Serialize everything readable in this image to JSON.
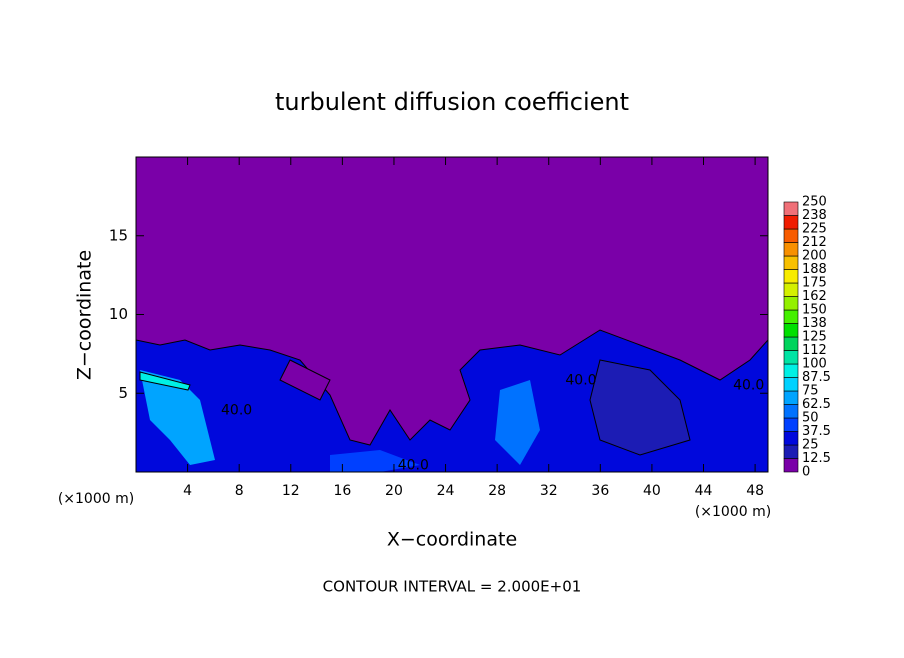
{
  "chart_data": {
    "type": "contour",
    "title": "turbulent diffusion coefficient",
    "x_label": "X−coordinate",
    "y_label": "Z−coordinate",
    "x_unit": "(×1000 m)",
    "footer": "CONTOUR INTERVAL = 2.000E+01",
    "xlim": [
      0,
      49
    ],
    "xticks": [
      4,
      8,
      12,
      16,
      20,
      24,
      28,
      32,
      36,
      40,
      44,
      48
    ],
    "ylim": [
      0,
      20
    ],
    "yticks": [
      5,
      10,
      15
    ],
    "contour_labels": [
      {
        "text": "40.0",
        "x": 7.8,
        "y": 3.9
      },
      {
        "text": "40.0",
        "x": 21.5,
        "y": 0.4
      },
      {
        "text": "40.0",
        "x": 34.5,
        "y": 5.8
      },
      {
        "text": "40.0",
        "x": 47.5,
        "y": 5.5
      }
    ],
    "levels": [
      0,
      12.5,
      25,
      37.5,
      50,
      62.5,
      75,
      87.5,
      100,
      {
        "value": 112.5,
        "label": "112"
      },
      125,
      {
        "value": 137.5,
        "label": "138"
      },
      150,
      {
        "value": 162.5,
        "label": "162"
      },
      175,
      {
        "value": 187.5,
        "label": "188"
      },
      200,
      {
        "value": 212.5,
        "label": "212"
      },
      225,
      {
        "value": 237.5,
        "label": "238"
      },
      250
    ],
    "colors": [
      "#7a00a8",
      "#1c1cb4",
      "#0008dc",
      "#0040ff",
      "#0072ff",
      "#00a4ff",
      "#00d2ff",
      "#00f0e4",
      "#00e4a4",
      "#00d45c",
      "#00e000",
      "#44f000",
      "#94f000",
      "#d4f000",
      "#f8ec00",
      "#f8c000",
      "#f89000",
      "#f85c00",
      "#f01c00",
      "#f07078"
    ]
  }
}
